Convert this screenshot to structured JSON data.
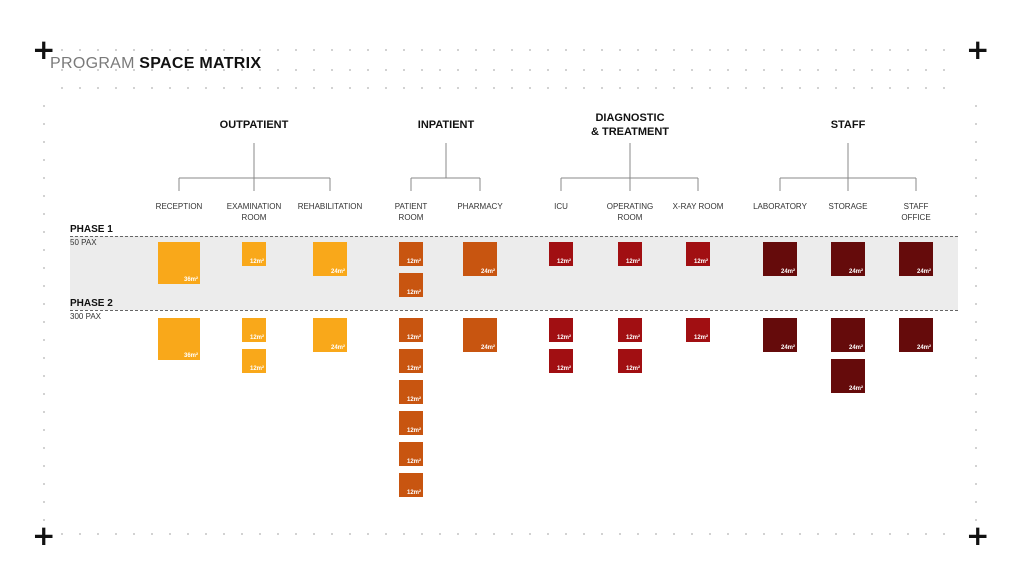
{
  "title": {
    "light": "PROGRAM",
    "bold": "SPACE MATRIX"
  },
  "categories": [
    {
      "label": "OUTPATIENT"
    },
    {
      "label": "INPATIENT"
    },
    {
      "label": "DIAGNOSTIC\n& TREATMENT"
    },
    {
      "label": "STAFF"
    }
  ],
  "phases": [
    {
      "title": "PHASE 1",
      "pax": "50 PAX"
    },
    {
      "title": "PHASE 2",
      "pax": "300 PAX"
    }
  ],
  "colors": {
    "outpatient": "#f9a81a",
    "inpatient": "#c85510",
    "diagnostic": "#a10f12",
    "staff": "#650b0b",
    "band": "#ececec"
  },
  "rooms": [
    {
      "name": "RECEPTION",
      "group": "outpatient",
      "phase1": [
        "36m²"
      ],
      "phase2": [
        "36m²"
      ]
    },
    {
      "name": "EXAMINATION\nROOM",
      "group": "outpatient",
      "phase1": [
        "12m²"
      ],
      "phase2": [
        "12m²",
        "12m²"
      ]
    },
    {
      "name": "REHABILITATION",
      "group": "outpatient",
      "phase1": [
        "24m²"
      ],
      "phase2": [
        "24m²"
      ]
    },
    {
      "name": "PATIENT\nROOM",
      "group": "inpatient",
      "phase1": [
        "12m²",
        "12m²"
      ],
      "phase2": [
        "12m²",
        "12m²",
        "12m²",
        "12m²",
        "12m²",
        "12m²"
      ]
    },
    {
      "name": "PHARMACY",
      "group": "inpatient",
      "phase1": [
        "24m²"
      ],
      "phase2": [
        "24m²"
      ]
    },
    {
      "name": "ICU",
      "group": "diagnostic",
      "phase1": [
        "12m²"
      ],
      "phase2": [
        "12m²",
        "12m²"
      ]
    },
    {
      "name": "OPERATING\nROOM",
      "group": "diagnostic",
      "phase1": [
        "12m²"
      ],
      "phase2": [
        "12m²",
        "12m²"
      ]
    },
    {
      "name": "X-RAY ROOM",
      "group": "diagnostic",
      "phase1": [
        "12m²"
      ],
      "phase2": [
        "12m²"
      ]
    },
    {
      "name": "LABORATORY",
      "group": "staff",
      "phase1": [
        "24m²"
      ],
      "phase2": [
        "24m²"
      ]
    },
    {
      "name": "STORAGE",
      "group": "staff",
      "phase1": [
        "24m²"
      ],
      "phase2": [
        "24m²",
        "24m²"
      ]
    },
    {
      "name": "STAFF\nOFFICE",
      "group": "staff",
      "phase1": [
        "24m²"
      ],
      "phase2": [
        "24m²"
      ]
    }
  ]
}
